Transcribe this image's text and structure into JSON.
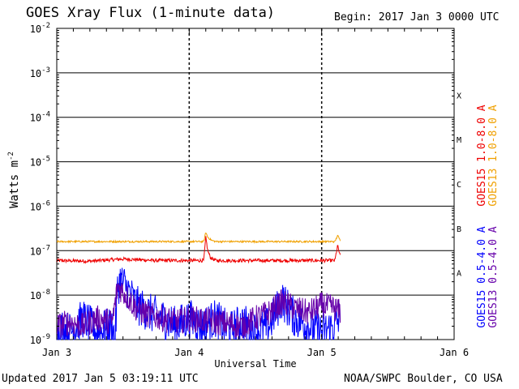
{
  "header": {
    "title": "GOES Xray Flux (1-minute data)",
    "begin": "Begin:  2017 Jan 3 0000 UTC"
  },
  "footer": {
    "updated": "Updated 2017 Jan  5 03:19:11 UTC",
    "credit": "NOAA/SWPC Boulder, CO USA"
  },
  "chart_data": {
    "type": "line",
    "title": "GOES Xray Flux (1-minute data)",
    "xlabel": "Universal Time",
    "ylabel": "Watts m-2",
    "yscale": "log",
    "ylim": [
      1e-09,
      0.01
    ],
    "xlim_days": [
      0,
      3
    ],
    "x_ticks": [
      {
        "day": 0,
        "label": "Jan 3"
      },
      {
        "day": 1,
        "label": "Jan 4"
      },
      {
        "day": 2,
        "label": "Jan 5"
      },
      {
        "day": 3,
        "label": "Jan 6"
      }
    ],
    "y_ticks": [
      {
        "exp": -2,
        "label": "10"
      },
      {
        "exp": -3,
        "label": "10"
      },
      {
        "exp": -4,
        "label": "10"
      },
      {
        "exp": -5,
        "label": "10"
      },
      {
        "exp": -6,
        "label": "10"
      },
      {
        "exp": -7,
        "label": "10"
      },
      {
        "exp": -8,
        "label": "10"
      },
      {
        "exp": -9,
        "label": "10"
      }
    ],
    "flare_classes": [
      {
        "label": "X",
        "exp": -3.5
      },
      {
        "label": "M",
        "exp": -4.5
      },
      {
        "label": "C",
        "exp": -5.5
      },
      {
        "label": "B",
        "exp": -6.5
      },
      {
        "label": "A",
        "exp": -7.5
      }
    ],
    "series": [
      {
        "name": "GOES15 1.0-8.0 A",
        "color": "#ee0000",
        "points": [
          [
            0,
            6e-08
          ],
          [
            0.25,
            5.8e-08
          ],
          [
            0.5,
            6.5e-08
          ],
          [
            0.75,
            6e-08
          ],
          [
            1.0,
            6e-08
          ],
          [
            1.11,
            6e-08
          ],
          [
            1.125,
            2e-07
          ],
          [
            1.14,
            1e-07
          ],
          [
            1.16,
            7e-08
          ],
          [
            1.2,
            6e-08
          ],
          [
            1.5,
            6e-08
          ],
          [
            1.75,
            6e-08
          ],
          [
            2.0,
            6e-08
          ],
          [
            2.1,
            6e-08
          ],
          [
            2.12,
            1.3e-07
          ],
          [
            2.14,
            7.5e-08
          ]
        ]
      },
      {
        "name": "GOES13 1.0-8.0 A",
        "color": "#f0a000",
        "points": [
          [
            0,
            1.6e-07
          ],
          [
            0.5,
            1.6e-07
          ],
          [
            1.0,
            1.6e-07
          ],
          [
            1.11,
            1.6e-07
          ],
          [
            1.125,
            2.6e-07
          ],
          [
            1.14,
            2e-07
          ],
          [
            1.17,
            1.7e-07
          ],
          [
            1.2,
            1.6e-07
          ],
          [
            1.5,
            1.6e-07
          ],
          [
            2.0,
            1.6e-07
          ],
          [
            2.1,
            1.6e-07
          ],
          [
            2.12,
            2.2e-07
          ],
          [
            2.14,
            1.7e-07
          ]
        ]
      },
      {
        "name": "GOES15 0.5-4.0 A",
        "color": "#0000ff",
        "points": [
          [
            0,
            2e-09
          ],
          [
            0.1,
            1.5e-09
          ],
          [
            0.2,
            3e-09
          ],
          [
            0.3,
            1.5e-09
          ],
          [
            0.42,
            2e-09
          ],
          [
            0.44,
            1e-09
          ],
          [
            0.46,
            1.5e-08
          ],
          [
            0.48,
            2.2e-08
          ],
          [
            0.52,
            1.6e-08
          ],
          [
            0.6,
            6e-09
          ],
          [
            0.7,
            4e-09
          ],
          [
            0.8,
            3e-09
          ],
          [
            0.9,
            2e-09
          ],
          [
            1.0,
            3e-09
          ],
          [
            1.1,
            2e-09
          ],
          [
            1.2,
            3e-09
          ],
          [
            1.3,
            1.5e-09
          ],
          [
            1.4,
            2.5e-09
          ],
          [
            1.5,
            1.5e-09
          ],
          [
            1.6,
            2e-09
          ],
          [
            1.7,
            8e-09
          ],
          [
            1.8,
            3e-09
          ],
          [
            1.9,
            2e-09
          ],
          [
            2.0,
            1.5e-09
          ],
          [
            2.1,
            2e-09
          ],
          [
            2.14,
            3e-09
          ]
        ]
      },
      {
        "name": "GOES13 0.5-4.0 A",
        "color": "#6600aa",
        "points": [
          [
            0,
            2e-09
          ],
          [
            0.1,
            2.5e-09
          ],
          [
            0.2,
            2e-09
          ],
          [
            0.3,
            3e-09
          ],
          [
            0.42,
            2.5e-09
          ],
          [
            0.46,
            1.6e-08
          ],
          [
            0.5,
            1.2e-08
          ],
          [
            0.6,
            5e-09
          ],
          [
            0.7,
            3.5e-09
          ],
          [
            0.8,
            3e-09
          ],
          [
            0.9,
            2.5e-09
          ],
          [
            1.0,
            3e-09
          ],
          [
            1.2,
            2.5e-09
          ],
          [
            1.4,
            2e-09
          ],
          [
            1.5,
            3e-09
          ],
          [
            1.6,
            4e-09
          ],
          [
            1.7,
            7e-09
          ],
          [
            1.8,
            5e-09
          ],
          [
            1.9,
            4e-09
          ],
          [
            2.0,
            6e-09
          ],
          [
            2.1,
            5e-09
          ],
          [
            2.14,
            4e-09
          ]
        ]
      }
    ]
  }
}
